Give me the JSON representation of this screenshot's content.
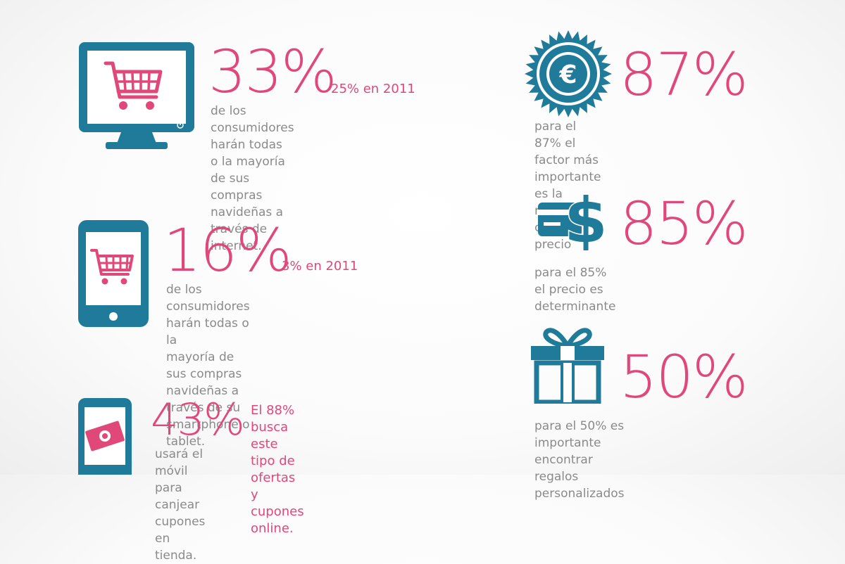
{
  "colors": {
    "accent": "#e0487a",
    "icon": "#1f7b99",
    "text": "#8a8a8a"
  },
  "left_column": [
    {
      "icon": "monitor-cart-icon",
      "percent": "33%",
      "comparison": "25% en 2011",
      "description": "de los consumidores harán todas\no la mayoría de sus compras\nnavideñas a través de internet."
    },
    {
      "icon": "tablet-cart-icon",
      "percent": "16%",
      "comparison": "3% en 2011",
      "description": "de los consumidores harán todas o la\nmayoría de sus compras navideñas a\ntravés de su smartphone o tablet."
    },
    {
      "icon": "phone-coupon-icon",
      "percent": "43%",
      "comparison": "El 88% busca este tipo de\nofertas y cupones online.",
      "description": "usará el móvil para canjear\ncupones en tienda."
    }
  ],
  "right_column": [
    {
      "icon": "euro-seal-icon",
      "percent": "87%",
      "description": "para el 87% el factor más importante\nes la relación calidad-precio"
    },
    {
      "icon": "card-dollar-icon",
      "percent": "85%",
      "description": "para el 85% el precio es determinante"
    },
    {
      "icon": "gift-icon",
      "percent": "50%",
      "description": "para el 50% es importante encontrar\nregalos personalizados"
    }
  ]
}
